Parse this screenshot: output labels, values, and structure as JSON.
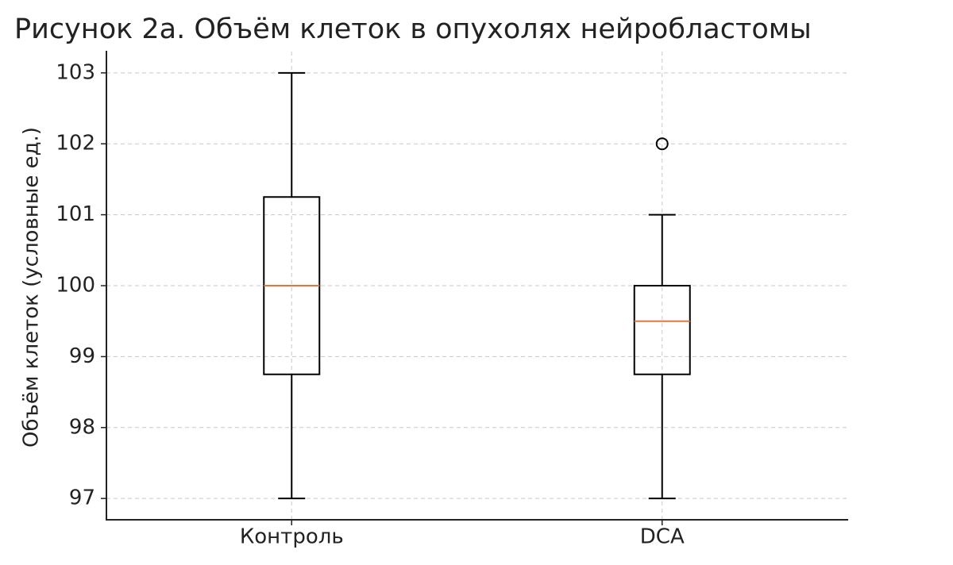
{
  "chart_data": {
    "type": "box",
    "title": "Рисунок 2а. Объём клеток в опухолях нейробластомы",
    "y_label": "Объём клеток (условные ед.)",
    "categories": [
      "Контроль",
      "DCA"
    ],
    "boxes": [
      {
        "whislo": 97,
        "q1": 98.75,
        "med": 100,
        "q3": 101.25,
        "whishi": 103,
        "fliers": []
      },
      {
        "whislo": 97,
        "q1": 98.75,
        "med": 99.5,
        "q3": 100,
        "whishi": 101,
        "fliers": [
          102
        ]
      }
    ],
    "box_color": "#000000",
    "median_color": "#e8743b",
    "ylim": [
      96.7,
      103.3
    ],
    "yticks": [
      97,
      98,
      99,
      100,
      101,
      102,
      103
    ],
    "grid": true
  }
}
